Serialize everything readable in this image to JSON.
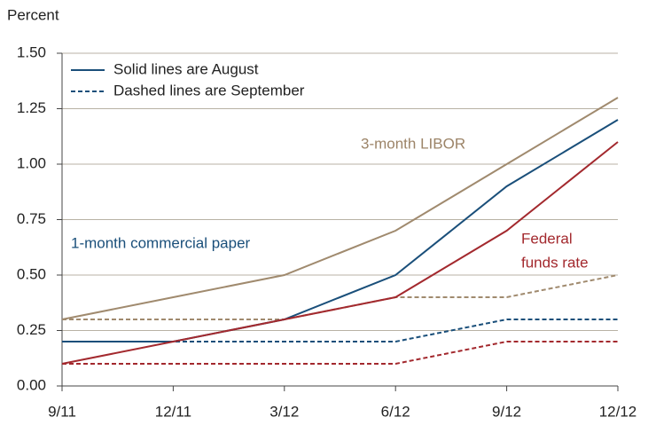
{
  "chart_data": {
    "type": "line",
    "y_axis_label": "Percent",
    "categories": [
      "9/11",
      "12/11",
      "3/12",
      "6/12",
      "9/12",
      "12/12"
    ],
    "ylim": [
      0,
      1.5
    ],
    "yticks": [
      {
        "value": 0,
        "label": "0.00"
      },
      {
        "value": 0.25,
        "label": "0.25"
      },
      {
        "value": 0.5,
        "label": "0.50"
      },
      {
        "value": 0.75,
        "label": "0.75"
      },
      {
        "value": 1,
        "label": "1.00"
      },
      {
        "value": 1.25,
        "label": "1.25"
      },
      {
        "value": 1.5,
        "label": "1.50"
      }
    ],
    "grid": true,
    "legend": [
      {
        "label": "Solid lines are August",
        "style": "solid",
        "color": "#1a4f7a"
      },
      {
        "label": "Dashed lines are September",
        "style": "dashed",
        "color": "#1a4f7a"
      }
    ],
    "series": [
      {
        "color": "#a08a6e",
        "style": "solid",
        "values": [
          0.3,
          0.4,
          0.5,
          0.7,
          1.0,
          1.3
        ]
      },
      {
        "color": "#1a4f7a",
        "style": "solid",
        "values": [
          0.2,
          0.2,
          0.3,
          0.5,
          0.9,
          1.2
        ]
      },
      {
        "color": "#a3292e",
        "style": "solid",
        "values": [
          0.1,
          0.2,
          0.3,
          0.4,
          0.7,
          1.1
        ]
      },
      {
        "color": "#a08a6e",
        "style": "dashed",
        "values": [
          0.3,
          0.3,
          0.3,
          0.4,
          0.4,
          0.5
        ]
      },
      {
        "color": "#1a4f7a",
        "style": "dashed",
        "values": [
          0.2,
          0.2,
          0.2,
          0.2,
          0.3,
          0.3
        ]
      },
      {
        "color": "#a3292e",
        "style": "dashed",
        "values": [
          0.1,
          0.1,
          0.1,
          0.1,
          0.2,
          0.2
        ]
      }
    ],
    "annotations": [
      {
        "lines": [
          "3-month LIBOR"
        ],
        "color": "#9c8468"
      },
      {
        "lines": [
          "1-month commercial paper"
        ],
        "color": "#1a4f7a"
      },
      {
        "lines": [
          "Federal",
          "funds rate"
        ],
        "color": "#a3292e"
      }
    ]
  }
}
